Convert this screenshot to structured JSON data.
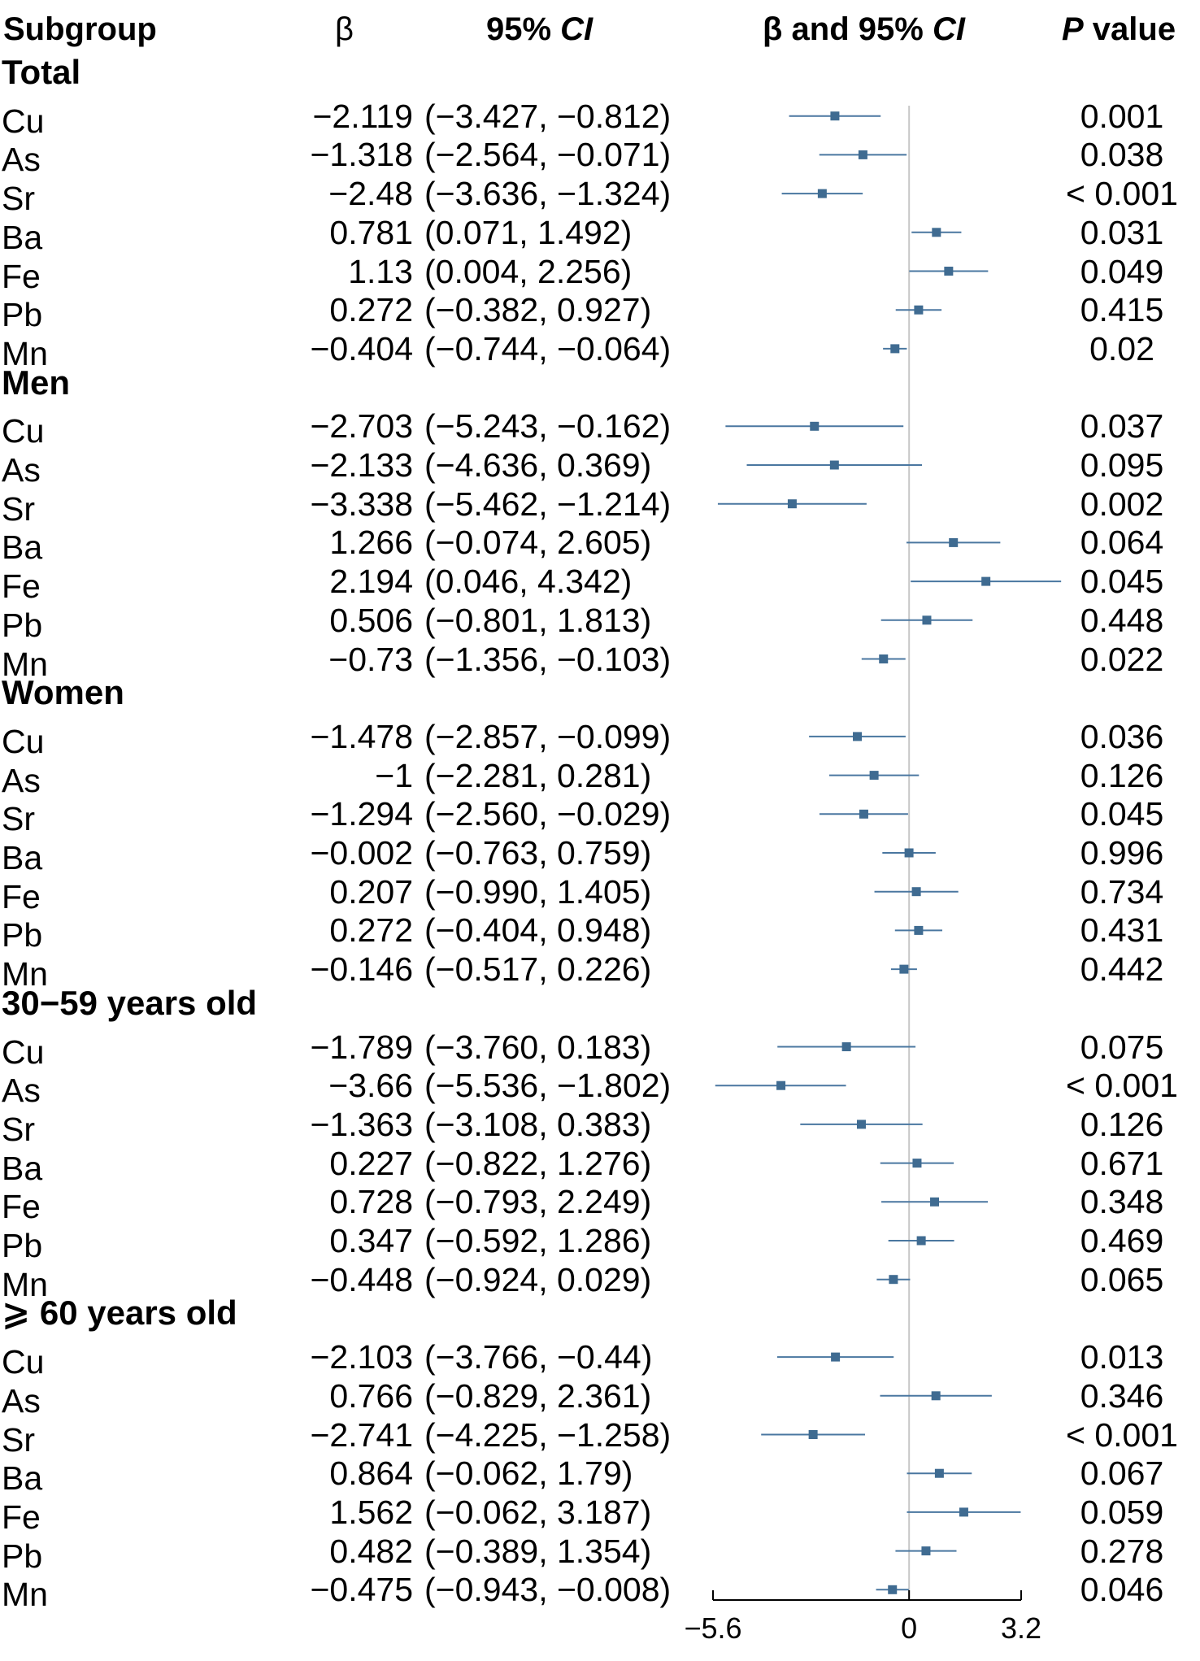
{
  "headers": {
    "subgroup": "Subgroup",
    "beta": "β",
    "ci_prefix": "95% ",
    "ci_italic": "CI",
    "plot_prefix": "β and 95% ",
    "plot_italic": "CI",
    "p_italic": "P",
    "p_suffix": " value"
  },
  "chart_data": {
    "type": "forest",
    "xlim": [
      -5.6,
      3.2
    ],
    "ticks": [
      "-5.6",
      "0",
      "3.2"
    ],
    "reference_line": 0,
    "colors": {
      "marker": "#3f6b91",
      "ci_line": "#4a77a0",
      "ref_line": "#c8c8c8",
      "axis": "#000000"
    },
    "groups": [
      {
        "name": "Total",
        "rows": [
          {
            "label": "Cu",
            "beta": "−2.119",
            "ci": "(−3.427, −0.812)",
            "p": "0.001",
            "est": -2.119,
            "lo": -3.427,
            "hi": -0.812
          },
          {
            "label": "As",
            "beta": "−1.318",
            "ci": "(−2.564, −0.071)",
            "p": "0.038",
            "est": -1.318,
            "lo": -2.564,
            "hi": -0.071
          },
          {
            "label": "Sr",
            "beta": "−2.48",
            "ci": "(−3.636, −1.324)",
            "p": "< 0.001",
            "est": -2.48,
            "lo": -3.636,
            "hi": -1.324
          },
          {
            "label": "Ba",
            "beta": "0.781",
            "ci": "(0.071, 1.492)",
            "p": "0.031",
            "est": 0.781,
            "lo": 0.071,
            "hi": 1.492
          },
          {
            "label": "Fe",
            "beta": "1.13",
            "ci": "(0.004, 2.256)",
            "p": "0.049",
            "est": 1.13,
            "lo": 0.004,
            "hi": 2.256
          },
          {
            "label": "Pb",
            "beta": "0.272",
            "ci": "(−0.382, 0.927)",
            "p": "0.415",
            "est": 0.272,
            "lo": -0.382,
            "hi": 0.927
          },
          {
            "label": "Mn",
            "beta": "−0.404",
            "ci": "(−0.744, −0.064)",
            "p": "0.02",
            "est": -0.404,
            "lo": -0.744,
            "hi": -0.064
          }
        ]
      },
      {
        "name": "Men",
        "rows": [
          {
            "label": "Cu",
            "beta": "−2.703",
            "ci": "(−5.243, −0.162)",
            "p": "0.037",
            "est": -2.703,
            "lo": -5.243,
            "hi": -0.162
          },
          {
            "label": "As",
            "beta": "−2.133",
            "ci": "(−4.636, 0.369)",
            "p": "0.095",
            "est": -2.133,
            "lo": -4.636,
            "hi": 0.369
          },
          {
            "label": "Sr",
            "beta": "−3.338",
            "ci": "(−5.462, −1.214)",
            "p": "0.002",
            "est": -3.338,
            "lo": -5.462,
            "hi": -1.214
          },
          {
            "label": "Ba",
            "beta": "1.266",
            "ci": "(−0.074, 2.605)",
            "p": "0.064",
            "est": 1.266,
            "lo": -0.074,
            "hi": 2.605
          },
          {
            "label": "Fe",
            "beta": "2.194",
            "ci": "(0.046, 4.342)",
            "p": "0.045",
            "est": 2.194,
            "lo": 0.046,
            "hi": 4.342
          },
          {
            "label": "Pb",
            "beta": "0.506",
            "ci": "(−0.801, 1.813)",
            "p": "0.448",
            "est": 0.506,
            "lo": -0.801,
            "hi": 1.813
          },
          {
            "label": "Mn",
            "beta": "−0.73",
            "ci": "(−1.356, −0.103)",
            "p": "0.022",
            "est": -0.73,
            "lo": -1.356,
            "hi": -0.103
          }
        ]
      },
      {
        "name": "Women",
        "rows": [
          {
            "label": "Cu",
            "beta": "−1.478",
            "ci": "(−2.857, −0.099)",
            "p": "0.036",
            "est": -1.478,
            "lo": -2.857,
            "hi": -0.099
          },
          {
            "label": "As",
            "beta": "−1",
            "ci": "(−2.281, 0.281)",
            "p": "0.126",
            "est": -1,
            "lo": -2.281,
            "hi": 0.281
          },
          {
            "label": "Sr",
            "beta": "−1.294",
            "ci": "(−2.560, −0.029)",
            "p": "0.045",
            "est": -1.294,
            "lo": -2.56,
            "hi": -0.029
          },
          {
            "label": "Ba",
            "beta": "−0.002",
            "ci": "(−0.763, 0.759)",
            "p": "0.996",
            "est": -0.002,
            "lo": -0.763,
            "hi": 0.759
          },
          {
            "label": "Fe",
            "beta": "0.207",
            "ci": "(−0.990, 1.405)",
            "p": "0.734",
            "est": 0.207,
            "lo": -0.99,
            "hi": 1.405
          },
          {
            "label": "Pb",
            "beta": "0.272",
            "ci": "(−0.404, 0.948)",
            "p": "0.431",
            "est": 0.272,
            "lo": -0.404,
            "hi": 0.948
          },
          {
            "label": "Mn",
            "beta": "−0.146",
            "ci": "(−0.517, 0.226)",
            "p": "0.442",
            "est": -0.146,
            "lo": -0.517,
            "hi": 0.226
          }
        ]
      },
      {
        "name": "30−59 years old",
        "rows": [
          {
            "label": "Cu",
            "beta": "−1.789",
            "ci": "(−3.760, 0.183)",
            "p": "0.075",
            "est": -1.789,
            "lo": -3.76,
            "hi": 0.183
          },
          {
            "label": "As",
            "beta": "−3.66",
            "ci": "(−5.536, −1.802)",
            "p": "< 0.001",
            "est": -3.66,
            "lo": -5.536,
            "hi": -1.802
          },
          {
            "label": "Sr",
            "beta": "−1.363",
            "ci": "(−3.108, 0.383)",
            "p": "0.126",
            "est": -1.363,
            "lo": -3.108,
            "hi": 0.383
          },
          {
            "label": "Ba",
            "beta": "0.227",
            "ci": "(−0.822, 1.276)",
            "p": "0.671",
            "est": 0.227,
            "lo": -0.822,
            "hi": 1.276
          },
          {
            "label": "Fe",
            "beta": "0.728",
            "ci": "(−0.793, 2.249)",
            "p": "0.348",
            "est": 0.728,
            "lo": -0.793,
            "hi": 2.249
          },
          {
            "label": "Pb",
            "beta": "0.347",
            "ci": "(−0.592, 1.286)",
            "p": "0.469",
            "est": 0.347,
            "lo": -0.592,
            "hi": 1.286
          },
          {
            "label": "Mn",
            "beta": "−0.448",
            "ci": "(−0.924, 0.029)",
            "p": "0.065",
            "est": -0.448,
            "lo": -0.924,
            "hi": 0.029
          }
        ]
      },
      {
        "name": "⩾ 60 years old",
        "rows": [
          {
            "label": "Cu",
            "beta": "−2.103",
            "ci": "(−3.766, −0.44)",
            "p": "0.013",
            "est": -2.103,
            "lo": -3.766,
            "hi": -0.44
          },
          {
            "label": "As",
            "beta": "0.766",
            "ci": "(−0.829, 2.361)",
            "p": "0.346",
            "est": 0.766,
            "lo": -0.829,
            "hi": 2.361
          },
          {
            "label": "Sr",
            "beta": "−2.741",
            "ci": "(−4.225, −1.258)",
            "p": "< 0.001",
            "est": -2.741,
            "lo": -4.225,
            "hi": -1.258
          },
          {
            "label": "Ba",
            "beta": "0.864",
            "ci": "(−0.062, 1.79)",
            "p": "0.067",
            "est": 0.864,
            "lo": -0.062,
            "hi": 1.79
          },
          {
            "label": "Fe",
            "beta": "1.562",
            "ci": "(−0.062, 3.187)",
            "p": "0.059",
            "est": 1.562,
            "lo": -0.062,
            "hi": 3.187
          },
          {
            "label": "Pb",
            "beta": "0.482",
            "ci": "(−0.389, 1.354)",
            "p": "0.278",
            "est": 0.482,
            "lo": -0.389,
            "hi": 1.354
          },
          {
            "label": "Mn",
            "beta": "−0.475",
            "ci": "(−0.943, −0.008)",
            "p": "0.046",
            "est": -0.475,
            "lo": -0.943,
            "hi": -0.008
          }
        ]
      }
    ]
  }
}
